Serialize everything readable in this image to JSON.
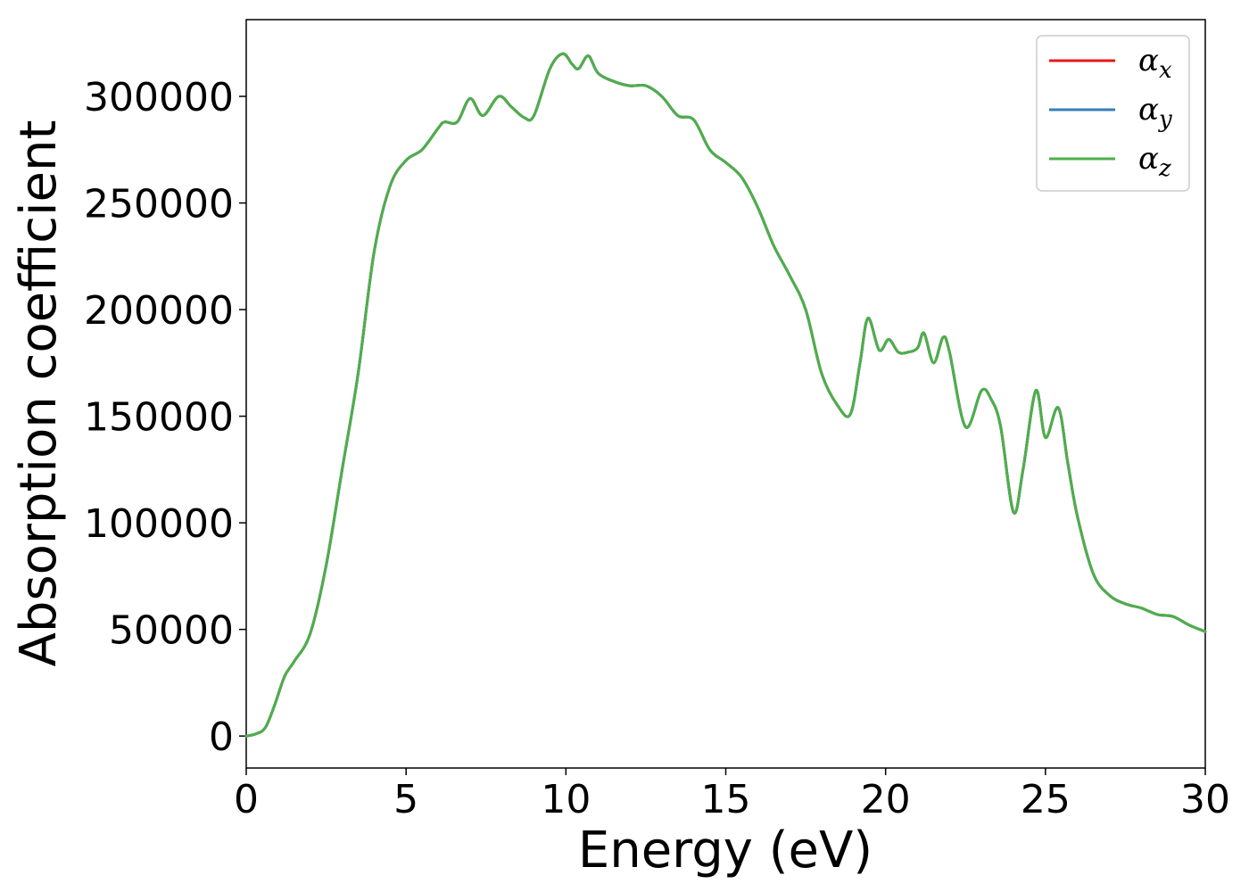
{
  "chart_data": {
    "type": "line",
    "xlabel": "Energy (eV)",
    "ylabel": "Absorption coefficient",
    "xlim": [
      0,
      30
    ],
    "ylim": [
      -15000,
      336000
    ],
    "xticks": [
      0,
      5,
      10,
      15,
      20,
      25,
      30
    ],
    "xtick_labels": [
      "0",
      "5",
      "10",
      "15",
      "20",
      "25",
      "30"
    ],
    "yticks": [
      0,
      50000,
      100000,
      150000,
      200000,
      250000,
      300000
    ],
    "ytick_labels": [
      "0",
      "50000",
      "100000",
      "150000",
      "200000",
      "250000",
      "300000"
    ],
    "grid": false,
    "legend_position": "top-right",
    "x": [
      0,
      0.3,
      0.6,
      0.9,
      1.2,
      1.5,
      2.0,
      2.5,
      3.0,
      3.5,
      4.0,
      4.5,
      5.0,
      5.5,
      6.0,
      6.2,
      6.6,
      7.0,
      7.4,
      7.9,
      8.3,
      8.7,
      9.0,
      9.5,
      9.9,
      10.2,
      10.4,
      10.7,
      11.0,
      11.5,
      12.0,
      12.5,
      13.0,
      13.5,
      14.0,
      14.5,
      15.0,
      15.5,
      16.0,
      16.5,
      17.0,
      17.5,
      18.0,
      18.5,
      18.9,
      19.2,
      19.45,
      19.8,
      20.1,
      20.4,
      20.7,
      21.0,
      21.2,
      21.5,
      21.8,
      22.0,
      22.5,
      23.0,
      23.3,
      23.6,
      24.0,
      24.3,
      24.7,
      25.0,
      25.4,
      25.7,
      26.0,
      26.5,
      27.0,
      27.5,
      28.0,
      28.5,
      29.0,
      29.5,
      30.0
    ],
    "series": [
      {
        "name": "αx",
        "label_base": "α",
        "label_sub": "x",
        "color": "#e41a1c",
        "values": [
          0,
          1000,
          4000,
          15000,
          28000,
          35000,
          48000,
          80000,
          125000,
          170000,
          227000,
          258000,
          270000,
          275000,
          285000,
          288000,
          288000,
          299000,
          291000,
          300000,
          295000,
          290000,
          291000,
          313000,
          320000,
          315000,
          313000,
          319000,
          311000,
          307000,
          305000,
          305000,
          300000,
          291000,
          289000,
          275000,
          269000,
          262000,
          248000,
          230000,
          216000,
          200000,
          170000,
          155000,
          151000,
          175000,
          196000,
          181000,
          186000,
          180000,
          180000,
          182000,
          189000,
          175000,
          187000,
          180000,
          145000,
          162000,
          158000,
          145000,
          105000,
          125000,
          162000,
          140000,
          154000,
          128000,
          103000,
          76000,
          66000,
          62000,
          60000,
          57000,
          56000,
          52000,
          49000
        ]
      },
      {
        "name": "αy",
        "label_base": "α",
        "label_sub": "y",
        "color": "#377eb8",
        "values": [
          0,
          1000,
          4000,
          15000,
          28000,
          35000,
          48000,
          80000,
          125000,
          170000,
          227000,
          258000,
          270000,
          275000,
          285000,
          288000,
          288000,
          299000,
          291000,
          300000,
          295000,
          290000,
          291000,
          313000,
          320000,
          315000,
          313000,
          319000,
          311000,
          307000,
          305000,
          305000,
          300000,
          291000,
          289000,
          275000,
          269000,
          262000,
          248000,
          230000,
          216000,
          200000,
          170000,
          155000,
          151000,
          175000,
          196000,
          181000,
          186000,
          180000,
          180000,
          182000,
          189000,
          175000,
          187000,
          180000,
          145000,
          162000,
          158000,
          145000,
          105000,
          125000,
          162000,
          140000,
          154000,
          128000,
          103000,
          76000,
          66000,
          62000,
          60000,
          57000,
          56000,
          52000,
          49000
        ]
      },
      {
        "name": "αz",
        "label_base": "α",
        "label_sub": "z",
        "color": "#4daf4a",
        "values": [
          0,
          1000,
          4000,
          15000,
          28000,
          35000,
          48000,
          80000,
          125000,
          170000,
          227000,
          258000,
          270000,
          275000,
          285000,
          288000,
          288000,
          299000,
          291000,
          300000,
          295000,
          290000,
          291000,
          313000,
          320000,
          315000,
          313000,
          319000,
          311000,
          307000,
          305000,
          305000,
          300000,
          291000,
          289000,
          275000,
          269000,
          262000,
          248000,
          230000,
          216000,
          200000,
          170000,
          155000,
          151000,
          175000,
          196000,
          181000,
          186000,
          180000,
          180000,
          182000,
          189000,
          175000,
          187000,
          180000,
          145000,
          162000,
          158000,
          145000,
          105000,
          125000,
          162000,
          140000,
          154000,
          128000,
          103000,
          76000,
          66000,
          62000,
          60000,
          57000,
          56000,
          52000,
          49000
        ]
      }
    ]
  }
}
